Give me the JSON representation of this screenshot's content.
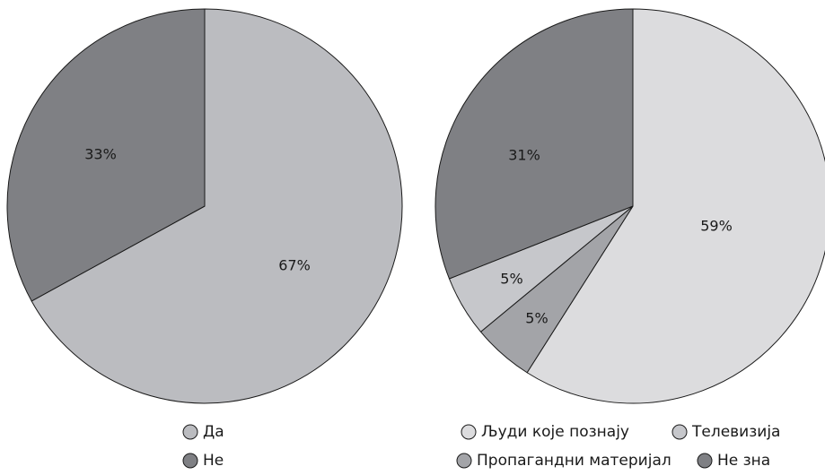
{
  "chart_data": [
    {
      "type": "pie",
      "title": "",
      "slices": [
        {
          "label": "Да",
          "value": 67,
          "value_label": "67%",
          "color": "#bbbcc0"
        },
        {
          "label": "Не",
          "value": 33,
          "value_label": "33%",
          "color": "#7f8084"
        }
      ],
      "legend": {
        "placement": "bottom",
        "entries": [
          "Да",
          "Не"
        ]
      }
    },
    {
      "type": "pie",
      "title": "",
      "slices": [
        {
          "label": "Људи које познају",
          "value": 59,
          "value_label": "59%",
          "color": "#dcdcde"
        },
        {
          "label": "Пропагандни материјал",
          "value": 5,
          "value_label": "5%",
          "color": "#a3a4a8"
        },
        {
          "label": "Телевизија",
          "value": 5,
          "value_label": "5%",
          "color": "#c6c7cb"
        },
        {
          "label": "Не зна",
          "value": 31,
          "value_label": "31%",
          "color": "#7f8084"
        }
      ],
      "legend": {
        "placement": "bottom",
        "entries": [
          "Људи које познају",
          "Телевизија",
          "Пропагандни материјал",
          "Не зна"
        ]
      }
    }
  ]
}
